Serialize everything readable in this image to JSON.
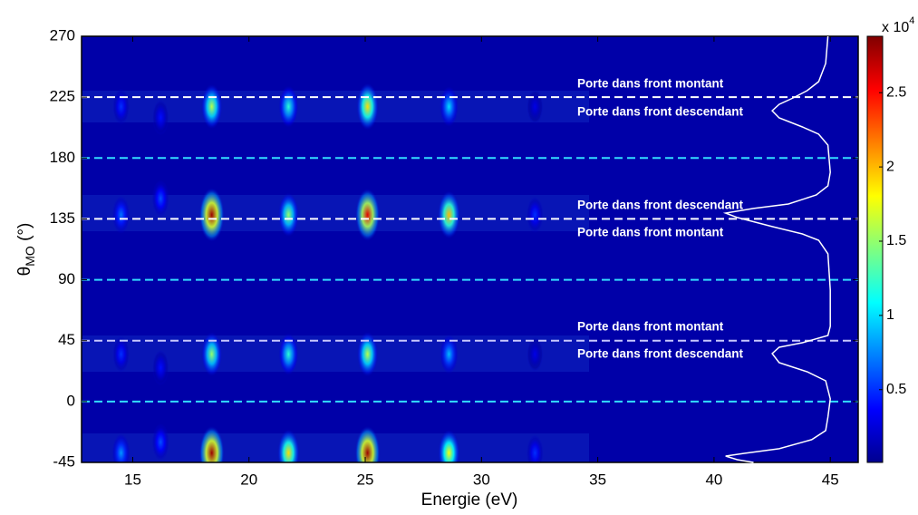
{
  "chart_data": {
    "type": "heatmap",
    "xlabel": "Energie (eV)",
    "ylabel": "θ",
    "ylabel_sub": "MO",
    "ylabel_unit": " (°)",
    "xlim": [
      12.8,
      46.2
    ],
    "xticks": [
      15,
      20,
      25,
      30,
      35,
      40,
      45
    ],
    "ylim": [
      -45,
      270
    ],
    "yticks": [
      -45,
      0,
      45,
      90,
      135,
      180,
      225,
      270
    ],
    "colorbar": {
      "label": "x 10",
      "exponent": "4",
      "clim": [
        0.01,
        2.88
      ],
      "ticks": [
        0.5,
        1,
        1.5,
        2,
        2.5
      ]
    },
    "peaks": {
      "x": [
        14.5,
        16.2,
        18.4,
        21.7,
        25.1,
        28.6,
        32.3,
        14.5,
        16.2,
        18.4,
        21.7,
        25.1,
        28.6,
        32.3,
        14.5,
        16.2,
        18.4,
        21.7,
        25.1,
        28.6,
        32.3,
        14.5,
        16.2,
        18.4,
        21.7,
        25.1,
        28.6,
        32.3
      ],
      "y": [
        218,
        210,
        218,
        218,
        218,
        218,
        218,
        138,
        150,
        138,
        138,
        138,
        138,
        138,
        35,
        25,
        35,
        35,
        35,
        35,
        35,
        -38,
        -30,
        -38,
        -38,
        -38,
        -38,
        -38
      ],
      "values": [
        0.5,
        0.4,
        1.6,
        1.2,
        1.9,
        1.0,
        0.3,
        0.7,
        0.6,
        2.8,
        1.5,
        2.6,
        2.0,
        0.5,
        0.5,
        0.4,
        1.5,
        1.2,
        1.6,
        0.9,
        0.3,
        0.8,
        0.6,
        2.8,
        1.9,
        2.8,
        1.8,
        0.5
      ]
    },
    "curve": {
      "color": "#ffffff",
      "x": [
        44.9,
        44.8,
        44.5,
        44.0,
        43.4,
        42.8,
        42.5,
        42.8,
        43.8,
        44.5,
        44.9,
        45.0,
        44.9,
        44.4,
        43.2,
        41.7,
        40.5,
        41.0,
        42.5,
        43.8,
        44.5,
        44.9,
        45.0,
        45.0,
        44.9,
        43.8,
        42.8,
        42.5,
        42.8,
        43.4,
        44.0,
        44.8,
        45.0,
        44.9,
        44.8,
        44.2,
        42.8,
        41.3,
        40.5,
        41.0,
        41.7
      ],
      "y": [
        270,
        249.9,
        236.5,
        229.8,
        224.4,
        219.7,
        215.0,
        209.7,
        203,
        197.6,
        189.6,
        169.5,
        159.4,
        152.7,
        146,
        142.7,
        139.3,
        136,
        129.3,
        123.9,
        119.2,
        109.2,
        82.4,
        55.6,
        48.8,
        43.5,
        40.1,
        35.4,
        28.7,
        25.4,
        22,
        15.3,
        2,
        -11.5,
        -21.5,
        -28.2,
        -34.9,
        -38.3,
        -40.3,
        -43,
        -45
      ]
    },
    "hlines": [
      {
        "y": 225,
        "color": "#ffffff"
      },
      {
        "y": 180,
        "color": "#33ddff"
      },
      {
        "y": 135,
        "color": "#ffffff"
      },
      {
        "y": 90,
        "color": "#33ddff"
      },
      {
        "y": 45,
        "color": "#c8c8ff"
      },
      {
        "y": 0,
        "color": "#33ddff"
      }
    ],
    "annotations": [
      "Porte dans front montant",
      "Porte dans front descendant",
      "Porte dans front descendant",
      "Porte dans front montant",
      "Porte dans front montant",
      "Porte dans front descendant"
    ]
  }
}
